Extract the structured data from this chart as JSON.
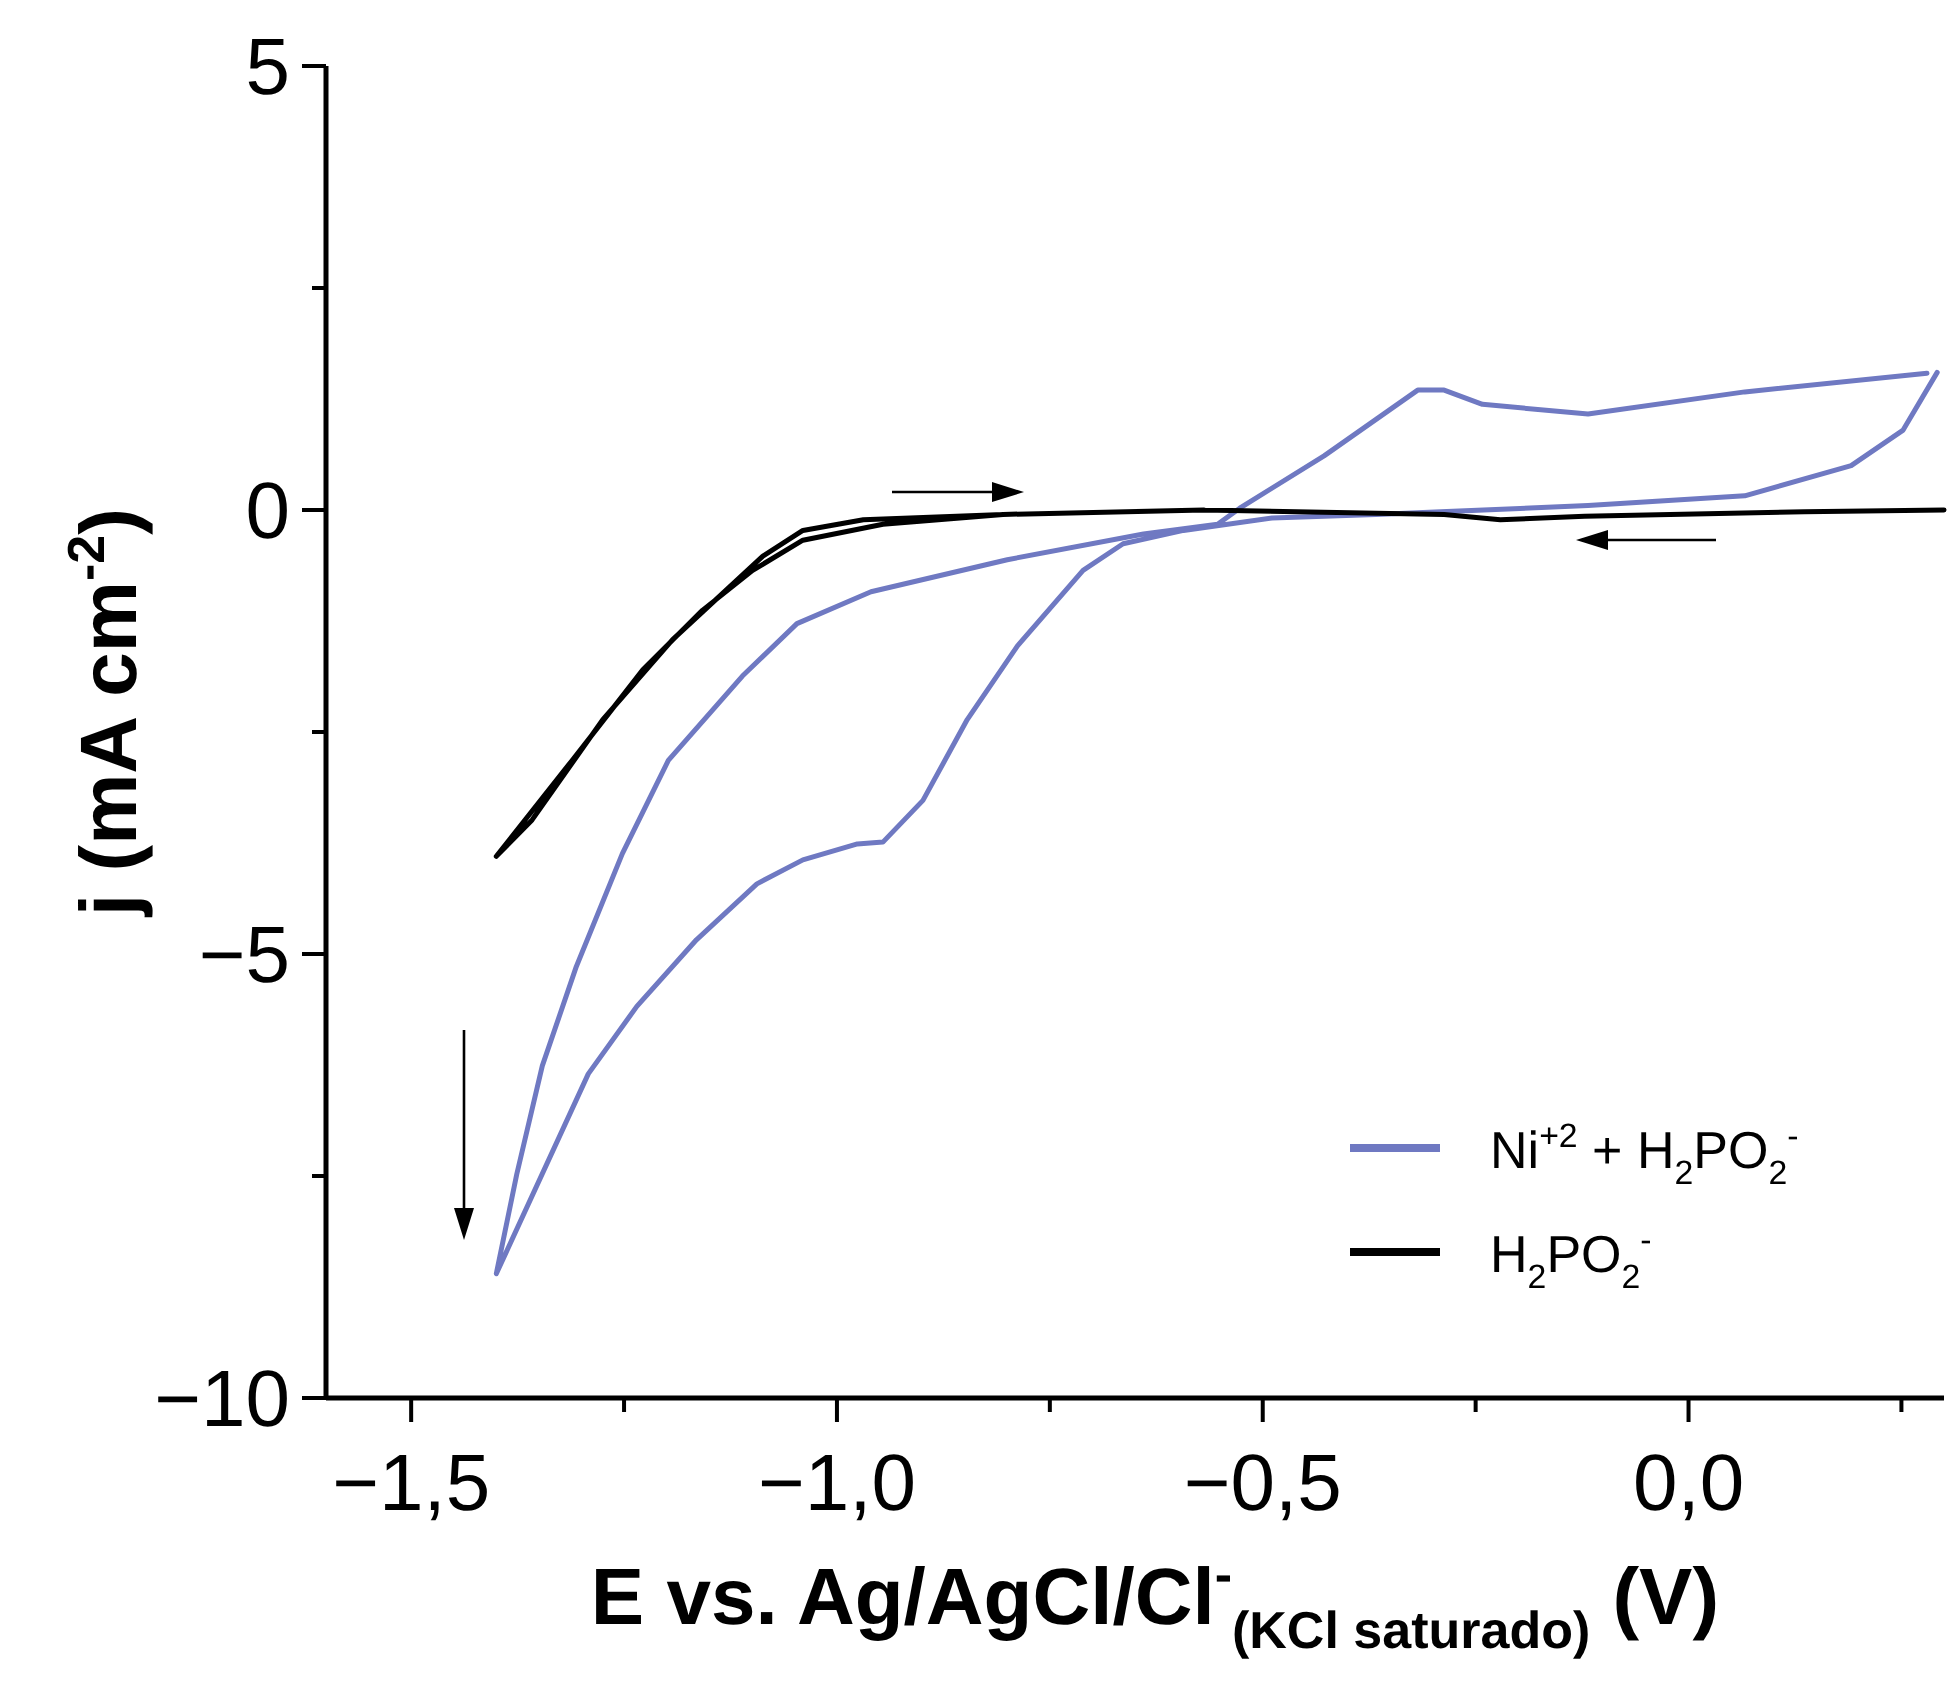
{
  "chart_data": {
    "type": "line",
    "xlabel": "E vs. Ag/AgCl/Cl$^{-}$$_{(KCl saturado)}$ (V)",
    "ylabel": "j (mA cm$^{-2}$)",
    "xlim": [
      -1.6,
      0.3
    ],
    "ylim": [
      -10,
      5
    ],
    "xticks": [
      {
        "value": -1.5,
        "label": "−1,5"
      },
      {
        "value": -1.25,
        "label": null
      },
      {
        "value": -1.0,
        "label": "−1,0"
      },
      {
        "value": -0.75,
        "label": null
      },
      {
        "value": -0.5,
        "label": "−0,5"
      },
      {
        "value": -0.25,
        "label": null
      },
      {
        "value": 0,
        "label": "0,0"
      },
      {
        "value": 0.25,
        "label": null
      }
    ],
    "yticks": [
      5,
      {
        "value": 2.5,
        "label": null
      },
      0,
      {
        "value": -2.5,
        "label": null
      },
      {
        "value": -5,
        "label": "−5"
      },
      {
        "value": -7.5,
        "label": null
      },
      {
        "value": -10,
        "label": "−10"
      }
    ],
    "grid": false,
    "legend": "bottom right",
    "marker": "none",
    "line_style": "solid",
    "series": [
      {
        "name": "Ni$^{+2}$ + H$_{2}$PO$_{2}$$^{-}$",
        "color": "#6f79c2",
        "x": [
          0.292,
          0.252,
          0.191,
          0.066,
          -0.118,
          -0.367,
          -0.489,
          -0.593,
          -0.664,
          -0.711,
          -0.788,
          -0.847,
          -0.899,
          -0.946,
          -0.976,
          -1.04,
          -1.094,
          -1.165,
          -1.235,
          -1.292,
          -1.4,
          -1.376,
          -1.346,
          -1.306,
          -1.252,
          -1.198,
          -1.111,
          -1.047,
          -0.96,
          -0.8,
          -0.64,
          -0.553,
          -0.527,
          -0.428,
          -0.318,
          -0.287,
          -0.242,
          -0.118,
          0.066,
          0.28
        ],
        "values": [
          1.55,
          0.9,
          0.5,
          0.16,
          0.05,
          -0.05,
          -0.09,
          -0.23,
          -0.38,
          -0.68,
          -1.53,
          -2.36,
          -3.27,
          -3.74,
          -3.76,
          -3.94,
          -4.21,
          -4.84,
          -5.59,
          -6.35,
          -8.6,
          -7.48,
          -6.26,
          -5.14,
          -3.87,
          -2.82,
          -1.87,
          -1.28,
          -0.92,
          -0.56,
          -0.27,
          -0.16,
          0.02,
          0.61,
          1.35,
          1.35,
          1.19,
          1.08,
          1.33,
          1.54
        ]
      },
      {
        "name": "H$_{2}$PO$_{2}$$^{-}$",
        "color": "#000000",
        "x": [
          0.3,
          0.136,
          -0.122,
          -0.221,
          -0.287,
          -0.569,
          -0.805,
          -0.946,
          -1.04,
          -1.099,
          -1.158,
          -1.228,
          -1.311,
          -1.4,
          -1.358,
          -1.275,
          -1.193,
          -1.087,
          -1.04,
          -0.969,
          -0.805,
          -0.569
        ],
        "values": [
          0,
          -0.02,
          -0.07,
          -0.11,
          -0.05,
          0,
          -0.05,
          -0.16,
          -0.34,
          -0.68,
          -1.13,
          -1.8,
          -2.82,
          -3.9,
          -3.49,
          -2.36,
          -1.46,
          -0.52,
          -0.23,
          -0.11,
          -0.05,
          0
        ]
      }
    ]
  }
}
